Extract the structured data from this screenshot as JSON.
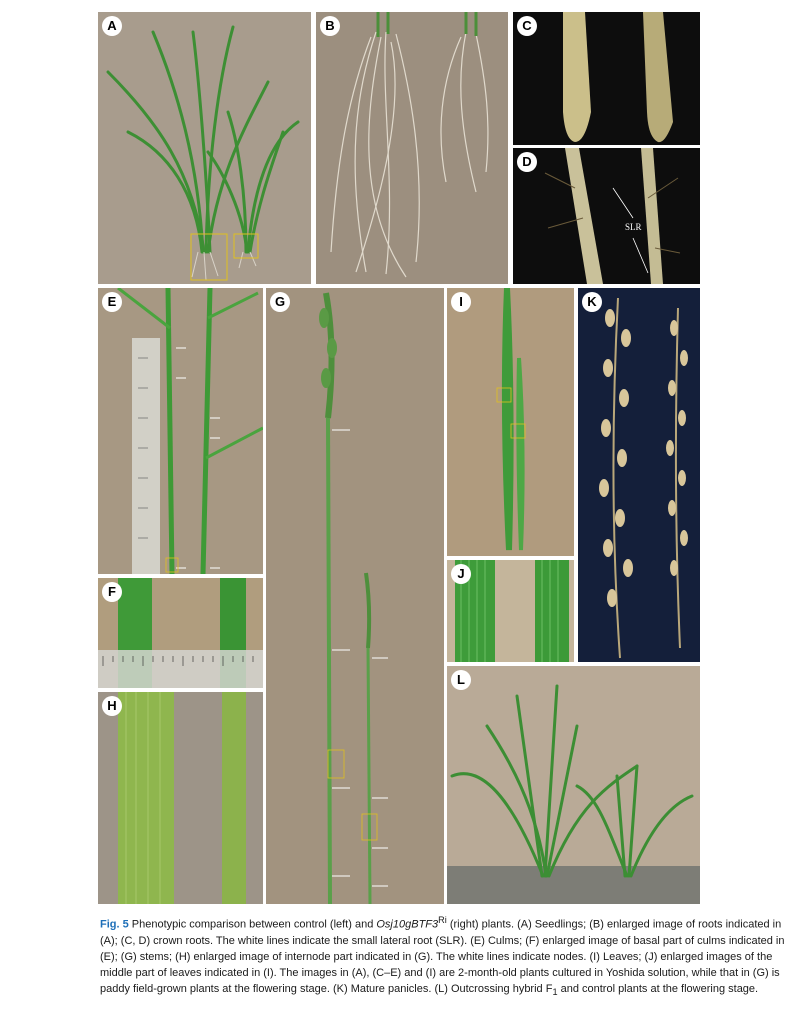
{
  "panels": {
    "A": {
      "label": "A"
    },
    "B": {
      "label": "B"
    },
    "C": {
      "label": "C"
    },
    "D": {
      "label": "D",
      "annotation": "SLR"
    },
    "E": {
      "label": "E"
    },
    "F": {
      "label": "F"
    },
    "G": {
      "label": "G"
    },
    "H": {
      "label": "H"
    },
    "I": {
      "label": "I"
    },
    "J": {
      "label": "J"
    },
    "K": {
      "label": "K"
    },
    "L": {
      "label": "L"
    }
  },
  "caption": {
    "fig": "Fig. 5",
    "t1": " Phenotypic comparison between control (left) and ",
    "gene": "Osj10gBTF3",
    "sup": "Ri",
    "t2": " (right) plants. (A) Seedlings; (B) enlarged image of roots indicated in (A); (C, D) crown roots. The white lines indicate the small lateral root (SLR). (E) Culms; (F) enlarged image of basal part of culms indicated in (E); (G) stems; (H) enlarged image of internode part indicated in (G). The white lines indicate nodes. (I) Leaves; (J) enlarged images of the middle part of leaves indicated in (I). The images in (A), (C–E) and (I) are 2-month-old plants cultured in Yoshida solution, while that in (G) is paddy field-grown plants at the flowering stage. (K) Mature panicles. (L) Outcrossing hybrid F",
    "sub": "1",
    "t3": " and control plants at the flowering stage."
  },
  "colors": {
    "brown_bg": "#a39584",
    "leaf_green": "#3f9a3a",
    "dark_bg": "#0d0d0d",
    "night_bg": "#141f3a",
    "fig_blue": "#1e6fb8"
  }
}
